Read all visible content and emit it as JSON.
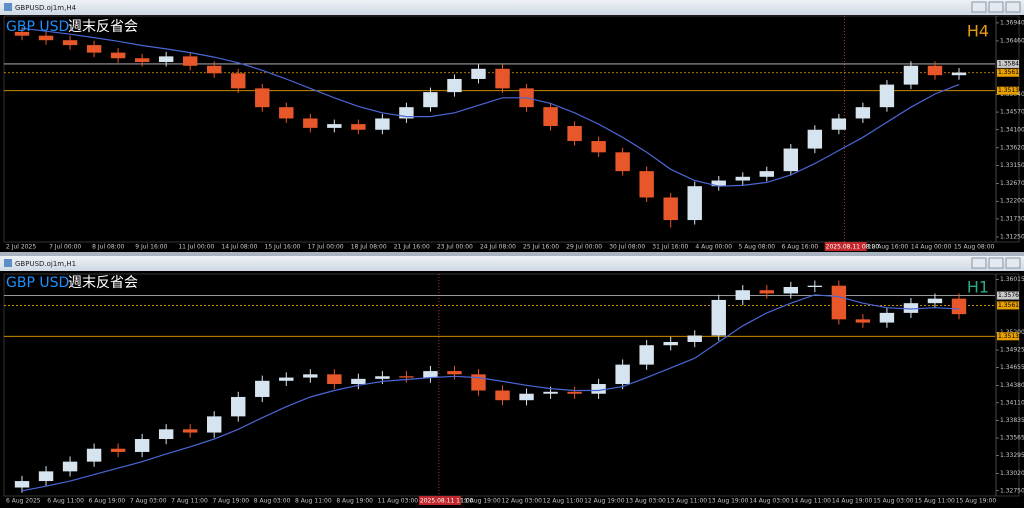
{
  "windows": [
    {
      "title": "GBPUSD.oj1m,H4",
      "symbol": "GBP USD",
      "caption": "週末反省会",
      "timeframe": "H4",
      "timeframe_color": "#e89a1a",
      "chart_data": {
        "type": "candlestick",
        "bull_color": "#d6e4ef",
        "bear_color": "#e8572a",
        "candles": [
          [
            1.367,
            1.3682,
            1.3648,
            1.366
          ],
          [
            1.366,
            1.3672,
            1.3636,
            1.3648
          ],
          [
            1.3648,
            1.366,
            1.3623,
            1.3635
          ],
          [
            1.3635,
            1.3647,
            1.3603,
            1.3615
          ],
          [
            1.3615,
            1.3627,
            1.3588,
            1.36
          ],
          [
            1.36,
            1.3612,
            1.3578,
            1.359
          ],
          [
            1.359,
            1.3617,
            1.3578,
            1.3605
          ],
          [
            1.3605,
            1.3617,
            1.3568,
            1.358
          ],
          [
            1.358,
            1.3592,
            1.3548,
            1.356
          ],
          [
            1.356,
            1.3572,
            1.3508,
            1.352
          ],
          [
            1.352,
            1.3532,
            1.3458,
            1.347
          ],
          [
            1.347,
            1.3482,
            1.3428,
            1.344
          ],
          [
            1.344,
            1.3452,
            1.3403,
            1.3415
          ],
          [
            1.3415,
            1.3437,
            1.3403,
            1.3425
          ],
          [
            1.3425,
            1.3437,
            1.3398,
            1.341
          ],
          [
            1.341,
            1.3452,
            1.3398,
            1.344
          ],
          [
            1.344,
            1.3482,
            1.3428,
            1.347
          ],
          [
            1.347,
            1.3522,
            1.3458,
            1.351
          ],
          [
            1.351,
            1.3557,
            1.3498,
            1.3545
          ],
          [
            1.3545,
            1.3584,
            1.3533,
            1.3572
          ],
          [
            1.3572,
            1.3584,
            1.3508,
            1.352
          ],
          [
            1.352,
            1.3532,
            1.3458,
            1.347
          ],
          [
            1.347,
            1.3482,
            1.3408,
            1.342
          ],
          [
            1.342,
            1.3432,
            1.3368,
            1.338
          ],
          [
            1.338,
            1.3392,
            1.3338,
            1.335
          ],
          [
            1.335,
            1.3362,
            1.3288,
            1.33
          ],
          [
            1.33,
            1.3312,
            1.3218,
            1.323
          ],
          [
            1.323,
            1.3242,
            1.315,
            1.317
          ],
          [
            1.317,
            1.3272,
            1.3158,
            1.326
          ],
          [
            1.326,
            1.3287,
            1.3248,
            1.3275
          ],
          [
            1.3275,
            1.3297,
            1.3263,
            1.3285
          ],
          [
            1.3285,
            1.3312,
            1.3273,
            1.33
          ],
          [
            1.33,
            1.3372,
            1.3288,
            1.336
          ],
          [
            1.336,
            1.3422,
            1.3348,
            1.341
          ],
          [
            1.341,
            1.3452,
            1.3398,
            1.344
          ],
          [
            1.344,
            1.3482,
            1.3428,
            1.347
          ],
          [
            1.347,
            1.3542,
            1.3458,
            1.353
          ],
          [
            1.353,
            1.3592,
            1.3518,
            1.358
          ],
          [
            1.358,
            1.3592,
            1.3543,
            1.3555
          ],
          [
            1.3555,
            1.3574,
            1.3543,
            1.3562
          ]
        ],
        "ma": {
          "color": "#4a67d6",
          "values": [
            1.368,
            1.3672,
            1.3664,
            1.3655,
            1.3645,
            1.3634,
            1.3625,
            1.3615,
            1.3603,
            1.3588,
            1.3568,
            1.3545,
            1.352,
            1.3495,
            1.3472,
            1.3455,
            1.3445,
            1.3445,
            1.3455,
            1.3475,
            1.3495,
            1.3495,
            1.348,
            1.3455,
            1.3425,
            1.339,
            1.335,
            1.3305,
            1.3275,
            1.326,
            1.3262,
            1.327,
            1.329,
            1.332,
            1.3355,
            1.339,
            1.343,
            1.347,
            1.3505,
            1.353
          ]
        },
        "ylim": [
          1.3117,
          1.3707
        ],
        "yticks": [
          {
            "value": 1.3694,
            "label": "1.36940"
          },
          {
            "value": 1.3646,
            "label": "1.36460"
          },
          {
            "value": 1.3504,
            "label": "1.35040"
          },
          {
            "value": 1.3457,
            "label": "1.34570"
          },
          {
            "value": 1.341,
            "label": "1.34100"
          },
          {
            "value": 1.3362,
            "label": "1.33620"
          },
          {
            "value": 1.3315,
            "label": "1.33150"
          },
          {
            "value": 1.3267,
            "label": "1.32670"
          },
          {
            "value": 1.322,
            "label": "1.32200"
          },
          {
            "value": 1.3173,
            "label": "1.31730"
          },
          {
            "value": 1.3125,
            "label": "1.31250"
          }
        ],
        "price_lines": [
          {
            "value": 1.35849,
            "label": "1.35849",
            "color": "#c8c8c8",
            "dashed": false
          },
          {
            "value": 1.35615,
            "label": "1.35615",
            "color": "#e8a000",
            "dashed": true
          },
          {
            "value": 1.35138,
            "label": "1.35138",
            "color": "#e8a000",
            "dashed": false
          }
        ],
        "x_labels": [
          "2 Jul 2025",
          "7 Jul 00:00",
          "8 Jul 08:00",
          "9 Jul 16:00",
          "11 Jul 00:00",
          "14 Jul 08:00",
          "15 Jul 16:00",
          "17 Jul 00:00",
          "18 Jul 08:00",
          "21 Jul 16:00",
          "23 Jul 00:00",
          "24 Jul 08:00",
          "25 Jul 16:00",
          "29 Jul 00:00",
          "30 Jul 08:00",
          "31 Jul 16:00",
          "4 Aug 00:00",
          "5 Aug 08:00",
          "6 Aug 16:00",
          {
            "label": "2025.08.11 08:00",
            "crosshair": true
          },
          "12 Aug 16:00",
          "14 Aug 00:00",
          "15 Aug 08:00"
        ]
      }
    },
    {
      "title": "GBPUSD.oj1m,H1",
      "symbol": "GBP USD",
      "caption": "週末反省会",
      "timeframe": "H1",
      "timeframe_color": "#2fa88a",
      "chart_data": {
        "type": "candlestick",
        "bull_color": "#d6e4ef",
        "bear_color": "#e8572a",
        "candles": [
          [
            1.328,
            1.3298,
            1.3272,
            1.329
          ],
          [
            1.329,
            1.3313,
            1.3282,
            1.3305
          ],
          [
            1.3305,
            1.3328,
            1.3297,
            1.332
          ],
          [
            1.332,
            1.3348,
            1.3312,
            1.334
          ],
          [
            1.334,
            1.3348,
            1.3327,
            1.3335
          ],
          [
            1.3335,
            1.3363,
            1.3327,
            1.3355
          ],
          [
            1.3355,
            1.3378,
            1.3347,
            1.337
          ],
          [
            1.337,
            1.3378,
            1.3357,
            1.3365
          ],
          [
            1.3365,
            1.3398,
            1.3357,
            1.339
          ],
          [
            1.339,
            1.3428,
            1.3382,
            1.342
          ],
          [
            1.342,
            1.3453,
            1.3412,
            1.3445
          ],
          [
            1.3445,
            1.3458,
            1.3437,
            1.345
          ],
          [
            1.345,
            1.3463,
            1.3442,
            1.3455
          ],
          [
            1.3455,
            1.3463,
            1.3432,
            1.344
          ],
          [
            1.344,
            1.3456,
            1.3432,
            1.3448
          ],
          [
            1.3448,
            1.346,
            1.344,
            1.3452
          ],
          [
            1.3452,
            1.346,
            1.3442,
            1.345
          ],
          [
            1.345,
            1.3468,
            1.3442,
            1.346
          ],
          [
            1.346,
            1.3468,
            1.3447,
            1.3455
          ],
          [
            1.3455,
            1.3463,
            1.3422,
            1.343
          ],
          [
            1.343,
            1.3438,
            1.3407,
            1.3415
          ],
          [
            1.3415,
            1.3433,
            1.3407,
            1.3425
          ],
          [
            1.3425,
            1.3436,
            1.3417,
            1.3428
          ],
          [
            1.3428,
            1.3436,
            1.3417,
            1.3425
          ],
          [
            1.3425,
            1.3448,
            1.3417,
            1.344
          ],
          [
            1.344,
            1.3478,
            1.3432,
            1.347
          ],
          [
            1.347,
            1.3508,
            1.3462,
            1.35
          ],
          [
            1.35,
            1.3513,
            1.3492,
            1.3505
          ],
          [
            1.3505,
            1.3523,
            1.3497,
            1.3515
          ],
          [
            1.3515,
            1.3578,
            1.3507,
            1.357
          ],
          [
            1.357,
            1.3593,
            1.3562,
            1.3585
          ],
          [
            1.3585,
            1.3593,
            1.3572,
            1.358
          ],
          [
            1.358,
            1.3598,
            1.3572,
            1.359
          ],
          [
            1.359,
            1.36,
            1.3582,
            1.3592
          ],
          [
            1.3592,
            1.36,
            1.3532,
            1.354
          ],
          [
            1.354,
            1.3548,
            1.3527,
            1.3535
          ],
          [
            1.3535,
            1.3558,
            1.3527,
            1.355
          ],
          [
            1.355,
            1.3573,
            1.3542,
            1.3565
          ],
          [
            1.3565,
            1.358,
            1.3557,
            1.3572
          ],
          [
            1.3572,
            1.358,
            1.354,
            1.3548
          ]
        ],
        "ma": {
          "color": "#4a67d6",
          "values": [
            1.3275,
            1.3282,
            1.329,
            1.33,
            1.331,
            1.332,
            1.3332,
            1.3343,
            1.3355,
            1.337,
            1.3388,
            1.3405,
            1.342,
            1.343,
            1.3438,
            1.3444,
            1.3447,
            1.345,
            1.3452,
            1.345,
            1.3444,
            1.3438,
            1.3433,
            1.343,
            1.343,
            1.3436,
            1.345,
            1.3465,
            1.348,
            1.3505,
            1.353,
            1.355,
            1.3565,
            1.3578,
            1.3575,
            1.3565,
            1.3558,
            1.3556,
            1.3558,
            1.3556
          ]
        },
        "ylim": [
          1.327,
          1.3607
        ],
        "yticks": [
          {
            "value": 1.36015,
            "label": "1.36015"
          },
          {
            "value": 1.352,
            "label": "1.35200"
          },
          {
            "value": 1.34925,
            "label": "1.34925"
          },
          {
            "value": 1.34655,
            "label": "1.34655"
          },
          {
            "value": 1.3438,
            "label": "1.34380"
          },
          {
            "value": 1.3411,
            "label": "1.34110"
          },
          {
            "value": 1.33835,
            "label": "1.33835"
          },
          {
            "value": 1.33565,
            "label": "1.33565"
          },
          {
            "value": 1.33295,
            "label": "1.33295"
          },
          {
            "value": 1.3302,
            "label": "1.33020"
          },
          {
            "value": 1.3275,
            "label": "1.32750"
          }
        ],
        "price_lines": [
          {
            "value": 1.35768,
            "label": "1.35768",
            "color": "#c8c8c8",
            "dashed": false
          },
          {
            "value": 1.35615,
            "label": "1.35615",
            "color": "#e8a000",
            "dashed": true
          },
          {
            "value": 1.35138,
            "label": "1.35138",
            "color": "#e8a000",
            "dashed": false
          }
        ],
        "x_labels": [
          "6 Aug 2025",
          "6 Aug 11:00",
          "6 Aug 19:00",
          "7 Aug 03:00",
          "7 Aug 11:00",
          "7 Aug 19:00",
          "8 Aug 03:00",
          "8 Aug 11:00",
          "8 Aug 19:00",
          "11 Aug 03:00",
          {
            "label": "2025.08.11 11:00",
            "crosshair": true
          },
          "11 Aug 19:00",
          "12 Aug 03:00",
          "12 Aug 11:00",
          "12 Aug 19:00",
          "13 Aug 03:00",
          "13 Aug 11:00",
          "13 Aug 19:00",
          "14 Aug 03:00",
          "14 Aug 11:00",
          "14 Aug 19:00",
          "15 Aug 03:00",
          "15 Aug 11:00",
          "15 Aug 19:00"
        ]
      }
    }
  ]
}
